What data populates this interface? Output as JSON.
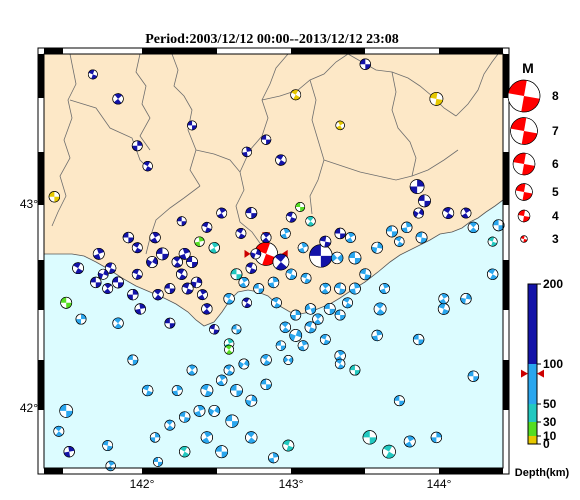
{
  "title": "Period:2003/12/12 00:00--2013/12/12 23:08",
  "colors": {
    "land": "#fde8c7",
    "sea": "#dcfcff",
    "boundary": "#6e6e6e",
    "frame": "#000000",
    "beachball_fill": "#ff0000"
  },
  "map": {
    "lon_labels": [
      "142°",
      "143°",
      "144°"
    ],
    "lat_labels": [
      "43°",
      "42°"
    ],
    "lon_range": [
      141.35,
      144.45
    ],
    "lat_range": [
      41.67,
      43.7
    ]
  },
  "magnitude_legend": {
    "title": "M",
    "items": [
      {
        "label": "8",
        "value": 8
      },
      {
        "label": "7",
        "value": 7
      },
      {
        "label": "6",
        "value": 6
      },
      {
        "label": "5",
        "value": 5
      },
      {
        "label": "4",
        "value": 4
      },
      {
        "label": "3",
        "value": 3
      }
    ]
  },
  "depth_scale": {
    "label": "Depth(km)",
    "ticks": [
      {
        "label": "200",
        "value": 200
      },
      {
        "label": "100",
        "value": 100
      },
      {
        "label": "50",
        "value": 50
      },
      {
        "label": "30",
        "value": 30
      },
      {
        "label": "10",
        "value": 10
      },
      {
        "label": "0",
        "value": 0
      }
    ],
    "bands": [
      {
        "from": 0,
        "to": 10,
        "color": "#e6c800"
      },
      {
        "from": 10,
        "to": 30,
        "color": "#55dd22"
      },
      {
        "from": 30,
        "to": 50,
        "color": "#22c8c0"
      },
      {
        "from": 50,
        "to": 100,
        "color": "#2aa6ee"
      },
      {
        "from": 100,
        "to": 200,
        "color": "#1313a8"
      }
    ],
    "marker_value": 88
  },
  "events": [
    {
      "lon": 142.85,
      "lat": 42.72,
      "mag": 6.5,
      "color": "#ff0000",
      "rot": 20,
      "highlight": true
    },
    {
      "lon": 143.22,
      "lat": 42.71,
      "mag": 6.4,
      "color": "#1313a8",
      "rot": 0
    },
    {
      "lon": 142.95,
      "lat": 42.68,
      "mag": 5.0,
      "color": "#1313a8",
      "rot": 40
    },
    {
      "lon": 144.0,
      "lat": 43.48,
      "mag": 4.4,
      "color": "#e6c800",
      "rot": 10
    },
    {
      "lon": 143.87,
      "lat": 43.05,
      "mag": 4.6,
      "color": "#1313a8",
      "rot": 90
    },
    {
      "lon": 143.92,
      "lat": 42.98,
      "mag": 4.2,
      "color": "#1313a8",
      "rot": 0
    },
    {
      "lon": 144.08,
      "lat": 42.92,
      "mag": 4.0,
      "color": "#1313a8",
      "rot": 30
    },
    {
      "lon": 144.2,
      "lat": 42.92,
      "mag": 3.8,
      "color": "#1313a8",
      "rot": 60
    },
    {
      "lon": 144.42,
      "lat": 42.86,
      "mag": 4.0,
      "color": "#2aa6ee",
      "rot": 0
    },
    {
      "lon": 144.25,
      "lat": 42.85,
      "mag": 3.9,
      "color": "#2aa6ee",
      "rot": 45
    },
    {
      "lon": 143.88,
      "lat": 42.92,
      "mag": 3.8,
      "color": "#1313a8",
      "rot": 120
    },
    {
      "lon": 143.9,
      "lat": 42.8,
      "mag": 4.0,
      "color": "#2aa6ee",
      "rot": 10
    },
    {
      "lon": 143.8,
      "lat": 42.85,
      "mag": 3.9,
      "color": "#2aa6ee",
      "rot": 80
    },
    {
      "lon": 143.7,
      "lat": 42.83,
      "mag": 4.0,
      "color": "#2aa6ee",
      "rot": 0
    },
    {
      "lon": 143.75,
      "lat": 42.78,
      "mag": 3.7,
      "color": "#2aa6ee",
      "rot": 30
    },
    {
      "lon": 144.38,
      "lat": 42.78,
      "mag": 3.6,
      "color": "#22c8c0",
      "rot": 20
    },
    {
      "lon": 143.6,
      "lat": 42.75,
      "mag": 4.0,
      "color": "#2aa6ee",
      "rot": 100
    },
    {
      "lon": 143.45,
      "lat": 42.7,
      "mag": 4.2,
      "color": "#2aa6ee",
      "rot": 0
    },
    {
      "lon": 143.42,
      "lat": 42.8,
      "mag": 3.8,
      "color": "#2aa6ee",
      "rot": 60
    },
    {
      "lon": 143.33,
      "lat": 42.7,
      "mag": 4.1,
      "color": "#2aa6ee",
      "rot": 140
    },
    {
      "lon": 143.25,
      "lat": 42.78,
      "mag": 4.0,
      "color": "#1313a8",
      "rot": 10
    },
    {
      "lon": 143.1,
      "lat": 42.75,
      "mag": 3.8,
      "color": "#2aa6ee",
      "rot": 70
    },
    {
      "lon": 143.02,
      "lat": 42.62,
      "mag": 3.9,
      "color": "#2aa6ee",
      "rot": 20
    },
    {
      "lon": 143.12,
      "lat": 42.6,
      "mag": 3.8,
      "color": "#2aa6ee",
      "rot": 200
    },
    {
      "lon": 143.25,
      "lat": 42.55,
      "mag": 3.9,
      "color": "#2aa6ee",
      "rot": 50
    },
    {
      "lon": 143.35,
      "lat": 42.55,
      "mag": 4.0,
      "color": "#2aa6ee",
      "rot": 10
    },
    {
      "lon": 143.45,
      "lat": 42.55,
      "mag": 4.0,
      "color": "#2aa6ee",
      "rot": 80
    },
    {
      "lon": 143.4,
      "lat": 42.48,
      "mag": 3.8,
      "color": "#2aa6ee",
      "rot": 30
    },
    {
      "lon": 143.28,
      "lat": 42.45,
      "mag": 4.0,
      "color": "#2aa6ee",
      "rot": 0
    },
    {
      "lon": 143.15,
      "lat": 42.45,
      "mag": 3.9,
      "color": "#2aa6ee",
      "rot": 160
    },
    {
      "lon": 143.05,
      "lat": 42.42,
      "mag": 3.8,
      "color": "#2aa6ee",
      "rot": 90
    },
    {
      "lon": 143.15,
      "lat": 42.36,
      "mag": 4.0,
      "color": "#2aa6ee",
      "rot": 20
    },
    {
      "lon": 143.05,
      "lat": 42.32,
      "mag": 4.2,
      "color": "#2aa6ee",
      "rot": 110
    },
    {
      "lon": 142.98,
      "lat": 42.36,
      "mag": 3.9,
      "color": "#2aa6ee",
      "rot": 40
    },
    {
      "lon": 143.1,
      "lat": 42.27,
      "mag": 3.8,
      "color": "#2aa6ee",
      "rot": 70
    },
    {
      "lon": 142.95,
      "lat": 42.27,
      "mag": 3.7,
      "color": "#2aa6ee",
      "rot": 0
    },
    {
      "lon": 143.0,
      "lat": 42.2,
      "mag": 3.6,
      "color": "#2aa6ee",
      "rot": 140
    },
    {
      "lon": 143.25,
      "lat": 42.3,
      "mag": 3.8,
      "color": "#2aa6ee",
      "rot": 20
    },
    {
      "lon": 143.35,
      "lat": 42.22,
      "mag": 3.9,
      "color": "#2aa6ee",
      "rot": 60
    },
    {
      "lon": 143.45,
      "lat": 42.15,
      "mag": 3.8,
      "color": "#22c8c0",
      "rot": 0
    },
    {
      "lon": 143.35,
      "lat": 42.18,
      "mag": 3.7,
      "color": "#2aa6ee",
      "rot": 30
    },
    {
      "lon": 143.6,
      "lat": 42.32,
      "mag": 3.9,
      "color": "#2aa6ee",
      "rot": 80
    },
    {
      "lon": 143.88,
      "lat": 42.3,
      "mag": 3.9,
      "color": "#2aa6ee",
      "rot": 0
    },
    {
      "lon": 144.05,
      "lat": 42.45,
      "mag": 4.0,
      "color": "#2aa6ee",
      "rot": 20
    },
    {
      "lon": 144.2,
      "lat": 42.5,
      "mag": 3.9,
      "color": "#2aa6ee",
      "rot": 100
    },
    {
      "lon": 144.05,
      "lat": 42.5,
      "mag": 3.8,
      "color": "#2aa6ee",
      "rot": 60
    },
    {
      "lon": 144.38,
      "lat": 42.62,
      "mag": 3.9,
      "color": "#2aa6ee",
      "rot": 30
    },
    {
      "lon": 144.25,
      "lat": 42.12,
      "mag": 3.9,
      "color": "#2aa6ee",
      "rot": 0
    },
    {
      "lon": 143.65,
      "lat": 42.55,
      "mag": 3.8,
      "color": "#2aa6ee",
      "rot": 70
    },
    {
      "lon": 143.52,
      "lat": 42.62,
      "mag": 4.0,
      "color": "#2aa6ee",
      "rot": 10
    },
    {
      "lon": 143.62,
      "lat": 42.45,
      "mag": 4.2,
      "color": "#2aa6ee",
      "rot": 40
    },
    {
      "lon": 143.55,
      "lat": 41.82,
      "mag": 4.5,
      "color": "#22c8c0",
      "rot": 0
    },
    {
      "lon": 143.68,
      "lat": 41.75,
      "mag": 4.4,
      "color": "#22c8c0",
      "rot": 30
    },
    {
      "lon": 143.82,
      "lat": 41.8,
      "mag": 4.0,
      "color": "#2aa6ee",
      "rot": 60
    },
    {
      "lon": 144.0,
      "lat": 41.82,
      "mag": 3.9,
      "color": "#2aa6ee",
      "rot": 90
    },
    {
      "lon": 143.75,
      "lat": 42.0,
      "mag": 3.8,
      "color": "#2aa6ee",
      "rot": 0
    },
    {
      "lon": 143.0,
      "lat": 41.78,
      "mag": 4.0,
      "color": "#22c8c0",
      "rot": 20
    },
    {
      "lon": 142.9,
      "lat": 41.72,
      "mag": 3.8,
      "color": "#2aa6ee",
      "rot": 80
    },
    {
      "lon": 142.75,
      "lat": 41.82,
      "mag": 4.1,
      "color": "#2aa6ee",
      "rot": 40
    },
    {
      "lon": 142.62,
      "lat": 41.9,
      "mag": 4.3,
      "color": "#2aa6ee",
      "rot": 0
    },
    {
      "lon": 142.5,
      "lat": 41.95,
      "mag": 4.0,
      "color": "#2aa6ee",
      "rot": 120
    },
    {
      "lon": 142.45,
      "lat": 42.05,
      "mag": 4.2,
      "color": "#2aa6ee",
      "rot": 20
    },
    {
      "lon": 142.55,
      "lat": 42.1,
      "mag": 3.9,
      "color": "#2aa6ee",
      "rot": 60
    },
    {
      "lon": 142.65,
      "lat": 42.05,
      "mag": 4.2,
      "color": "#2aa6ee",
      "rot": 0
    },
    {
      "lon": 142.75,
      "lat": 42.0,
      "mag": 4.0,
      "color": "#2aa6ee",
      "rot": 100
    },
    {
      "lon": 142.6,
      "lat": 42.15,
      "mag": 3.8,
      "color": "#2aa6ee",
      "rot": 30
    },
    {
      "lon": 142.4,
      "lat": 41.95,
      "mag": 4.0,
      "color": "#2aa6ee",
      "rot": 70
    },
    {
      "lon": 142.3,
      "lat": 41.92,
      "mag": 3.9,
      "color": "#2aa6ee",
      "rot": 10
    },
    {
      "lon": 142.2,
      "lat": 41.88,
      "mag": 3.8,
      "color": "#2aa6ee",
      "rot": 40
    },
    {
      "lon": 142.1,
      "lat": 41.82,
      "mag": 3.7,
      "color": "#2aa6ee",
      "rot": 90
    },
    {
      "lon": 142.12,
      "lat": 41.7,
      "mag": 3.6,
      "color": "#2aa6ee",
      "rot": 0
    },
    {
      "lon": 142.3,
      "lat": 41.75,
      "mag": 3.9,
      "color": "#22c8c0",
      "rot": 30
    },
    {
      "lon": 142.45,
      "lat": 41.82,
      "mag": 4.1,
      "color": "#2aa6ee",
      "rot": 60
    },
    {
      "lon": 142.55,
      "lat": 41.75,
      "mag": 4.2,
      "color": "#2aa6ee",
      "rot": 0
    },
    {
      "lon": 142.05,
      "lat": 42.05,
      "mag": 3.9,
      "color": "#2aa6ee",
      "rot": 20
    },
    {
      "lon": 142.35,
      "lat": 42.15,
      "mag": 3.8,
      "color": "#2aa6ee",
      "rot": 50
    },
    {
      "lon": 142.25,
      "lat": 42.05,
      "mag": 3.8,
      "color": "#2aa6ee",
      "rot": 80
    },
    {
      "lon": 142.85,
      "lat": 42.08,
      "mag": 3.9,
      "color": "#2aa6ee",
      "rot": 0
    },
    {
      "lon": 142.7,
      "lat": 42.18,
      "mag": 3.8,
      "color": "#2aa6ee",
      "rot": 120
    },
    {
      "lon": 142.85,
      "lat": 42.2,
      "mag": 3.9,
      "color": "#2aa6ee",
      "rot": 30
    },
    {
      "lon": 141.5,
      "lat": 41.95,
      "mag": 4.4,
      "color": "#2aa6ee",
      "rot": 0
    },
    {
      "lon": 141.45,
      "lat": 41.85,
      "mag": 3.8,
      "color": "#2aa6ee",
      "rot": 40
    },
    {
      "lon": 141.52,
      "lat": 41.75,
      "mag": 3.9,
      "color": "#1313a8",
      "rot": 80
    },
    {
      "lon": 141.78,
      "lat": 41.78,
      "mag": 3.8,
      "color": "#2aa6ee",
      "rot": 10
    },
    {
      "lon": 141.8,
      "lat": 41.68,
      "mag": 3.7,
      "color": "#2aa6ee",
      "rot": 60
    },
    {
      "lon": 141.95,
      "lat": 42.2,
      "mag": 3.8,
      "color": "#2aa6ee",
      "rot": 0
    },
    {
      "lon": 141.85,
      "lat": 42.38,
      "mag": 3.9,
      "color": "#2aa6ee",
      "rot": 40
    },
    {
      "lon": 141.6,
      "lat": 42.4,
      "mag": 3.8,
      "color": "#2aa6ee",
      "rot": 90
    },
    {
      "lon": 141.5,
      "lat": 42.48,
      "mag": 4.0,
      "color": "#55dd22",
      "rot": 0
    },
    {
      "lon": 141.58,
      "lat": 42.65,
      "mag": 4.0,
      "color": "#1313a8",
      "rot": 30
    },
    {
      "lon": 141.72,
      "lat": 42.72,
      "mag": 4.0,
      "color": "#1313a8",
      "rot": 70
    },
    {
      "lon": 141.8,
      "lat": 42.65,
      "mag": 3.9,
      "color": "#1313a8",
      "rot": 20
    },
    {
      "lon": 141.75,
      "lat": 42.62,
      "mag": 3.8,
      "color": "#1313a8",
      "rot": 110
    },
    {
      "lon": 141.85,
      "lat": 42.58,
      "mag": 4.0,
      "color": "#1313a8",
      "rot": 0
    },
    {
      "lon": 141.78,
      "lat": 42.55,
      "mag": 3.8,
      "color": "#1313a8",
      "rot": 50
    },
    {
      "lon": 141.95,
      "lat": 42.52,
      "mag": 3.9,
      "color": "#1313a8",
      "rot": 90
    },
    {
      "lon": 141.92,
      "lat": 42.8,
      "mag": 3.9,
      "color": "#1313a8",
      "rot": 0
    },
    {
      "lon": 141.98,
      "lat": 42.75,
      "mag": 3.8,
      "color": "#1313a8",
      "rot": 30
    },
    {
      "lon": 142.1,
      "lat": 42.8,
      "mag": 3.9,
      "color": "#1313a8",
      "rot": 60
    },
    {
      "lon": 142.15,
      "lat": 42.72,
      "mag": 4.2,
      "color": "#1313a8",
      "rot": 0
    },
    {
      "lon": 142.08,
      "lat": 42.68,
      "mag": 4.0,
      "color": "#1313a8",
      "rot": 120
    },
    {
      "lon": 142.25,
      "lat": 42.68,
      "mag": 3.9,
      "color": "#1313a8",
      "rot": 40
    },
    {
      "lon": 142.3,
      "lat": 42.72,
      "mag": 4.0,
      "color": "#1313a8",
      "rot": 70
    },
    {
      "lon": 142.35,
      "lat": 42.68,
      "mag": 4.0,
      "color": "#1313a8",
      "rot": 0
    },
    {
      "lon": 142.28,
      "lat": 42.62,
      "mag": 3.9,
      "color": "#1313a8",
      "rot": 30
    },
    {
      "lon": 142.38,
      "lat": 42.58,
      "mag": 3.9,
      "color": "#1313a8",
      "rot": 100
    },
    {
      "lon": 142.32,
      "lat": 42.55,
      "mag": 4.0,
      "color": "#1313a8",
      "rot": 20
    },
    {
      "lon": 142.42,
      "lat": 42.52,
      "mag": 3.8,
      "color": "#1313a8",
      "rot": 60
    },
    {
      "lon": 142.2,
      "lat": 42.55,
      "mag": 3.8,
      "color": "#1313a8",
      "rot": 0
    },
    {
      "lon": 142.12,
      "lat": 42.52,
      "mag": 3.9,
      "color": "#1313a8",
      "rot": 40
    },
    {
      "lon": 142.0,
      "lat": 42.45,
      "mag": 3.9,
      "color": "#1313a8",
      "rot": 80
    },
    {
      "lon": 142.2,
      "lat": 42.38,
      "mag": 3.8,
      "color": "#1313a8",
      "rot": 0
    },
    {
      "lon": 142.45,
      "lat": 42.45,
      "mag": 3.9,
      "color": "#1313a8",
      "rot": 50
    },
    {
      "lon": 142.6,
      "lat": 42.5,
      "mag": 3.9,
      "color": "#2aa6ee",
      "rot": 30
    },
    {
      "lon": 142.5,
      "lat": 42.35,
      "mag": 3.7,
      "color": "#1313a8",
      "rot": 10
    },
    {
      "lon": 142.6,
      "lat": 42.28,
      "mag": 3.7,
      "color": "#22c8c0",
      "rot": 70
    },
    {
      "lon": 142.65,
      "lat": 42.35,
      "mag": 3.6,
      "color": "#2aa6ee",
      "rot": 0
    },
    {
      "lon": 142.6,
      "lat": 42.25,
      "mag": 3.6,
      "color": "#55dd22",
      "rot": 40
    },
    {
      "lon": 142.65,
      "lat": 42.62,
      "mag": 4.0,
      "color": "#22c8c0",
      "rot": 0
    },
    {
      "lon": 142.5,
      "lat": 42.75,
      "mag": 3.9,
      "color": "#22c8c0",
      "rot": 60
    },
    {
      "lon": 142.45,
      "lat": 42.85,
      "mag": 3.8,
      "color": "#1313a8",
      "rot": 20
    },
    {
      "lon": 142.4,
      "lat": 42.78,
      "mag": 3.7,
      "color": "#55dd22",
      "rot": 80
    },
    {
      "lon": 142.28,
      "lat": 42.88,
      "mag": 3.6,
      "color": "#1313a8",
      "rot": 0
    },
    {
      "lon": 142.68,
      "lat": 42.82,
      "mag": 3.8,
      "color": "#1313a8",
      "rot": 30
    },
    {
      "lon": 142.75,
      "lat": 42.92,
      "mag": 4.0,
      "color": "#1313a8",
      "rot": 0
    },
    {
      "lon": 142.85,
      "lat": 42.8,
      "mag": 3.8,
      "color": "#1313a8",
      "rot": 50
    },
    {
      "lon": 142.78,
      "lat": 42.72,
      "mag": 3.8,
      "color": "#1313a8",
      "rot": 110
    },
    {
      "lon": 142.75,
      "lat": 42.65,
      "mag": 3.9,
      "color": "#1313a8",
      "rot": 20
    },
    {
      "lon": 142.7,
      "lat": 42.58,
      "mag": 3.8,
      "color": "#2aa6ee",
      "rot": 60
    },
    {
      "lon": 142.8,
      "lat": 42.55,
      "mag": 3.8,
      "color": "#2aa6ee",
      "rot": 0
    },
    {
      "lon": 142.72,
      "lat": 42.48,
      "mag": 3.7,
      "color": "#1313a8",
      "rot": 30
    },
    {
      "lon": 142.9,
      "lat": 42.58,
      "mag": 3.9,
      "color": "#2aa6ee",
      "rot": 80
    },
    {
      "lon": 143.02,
      "lat": 42.9,
      "mag": 3.8,
      "color": "#1313a8",
      "rot": 20
    },
    {
      "lon": 143.08,
      "lat": 42.95,
      "mag": 3.6,
      "color": "#55dd22",
      "rot": 0
    },
    {
      "lon": 143.15,
      "lat": 42.88,
      "mag": 3.7,
      "color": "#22c8c0",
      "rot": 40
    },
    {
      "lon": 142.98,
      "lat": 42.82,
      "mag": 3.8,
      "color": "#2aa6ee",
      "rot": 70
    },
    {
      "lon": 143.35,
      "lat": 42.82,
      "mag": 3.9,
      "color": "#1313a8",
      "rot": 0
    },
    {
      "lon": 142.95,
      "lat": 43.18,
      "mag": 3.9,
      "color": "#1313a8",
      "rot": 30
    },
    {
      "lon": 142.72,
      "lat": 43.22,
      "mag": 3.7,
      "color": "#1313a8",
      "rot": 80
    },
    {
      "lon": 142.85,
      "lat": 43.28,
      "mag": 3.7,
      "color": "#1313a8",
      "rot": 0
    },
    {
      "lon": 143.05,
      "lat": 43.5,
      "mag": 3.8,
      "color": "#e6c800",
      "rot": 30
    },
    {
      "lon": 143.35,
      "lat": 43.35,
      "mag": 3.5,
      "color": "#e6c800",
      "rot": 60
    },
    {
      "lon": 143.52,
      "lat": 43.65,
      "mag": 3.9,
      "color": "#1313a8",
      "rot": 0
    },
    {
      "lon": 141.68,
      "lat": 43.6,
      "mag": 3.6,
      "color": "#1313a8",
      "rot": 20
    },
    {
      "lon": 141.85,
      "lat": 43.48,
      "mag": 3.9,
      "color": "#1313a8",
      "rot": 50
    },
    {
      "lon": 142.35,
      "lat": 43.35,
      "mag": 3.6,
      "color": "#1313a8",
      "rot": 0
    },
    {
      "lon": 141.98,
      "lat": 43.25,
      "mag": 3.8,
      "color": "#1313a8",
      "rot": 90
    },
    {
      "lon": 142.05,
      "lat": 43.15,
      "mag": 3.7,
      "color": "#1313a8",
      "rot": 30
    },
    {
      "lon": 141.42,
      "lat": 43.0,
      "mag": 3.9,
      "color": "#e6c800",
      "rot": 0
    },
    {
      "lon": 142.55,
      "lat": 42.92,
      "mag": 3.8,
      "color": "#1313a8",
      "rot": 60
    },
    {
      "lon": 141.98,
      "lat": 42.62,
      "mag": 3.8,
      "color": "#1313a8",
      "rot": 20
    },
    {
      "lon": 141.7,
      "lat": 42.58,
      "mag": 3.9,
      "color": "#1313a8",
      "rot": 0
    },
    {
      "lon": 142.92,
      "lat": 42.48,
      "mag": 3.8,
      "color": "#2aa6ee",
      "rot": 30
    },
    {
      "lon": 143.35,
      "lat": 42.42,
      "mag": 3.8,
      "color": "#2aa6ee",
      "rot": 0
    },
    {
      "lon": 143.2,
      "lat": 42.4,
      "mag": 3.9,
      "color": "#2aa6ee",
      "rot": 50
    }
  ]
}
